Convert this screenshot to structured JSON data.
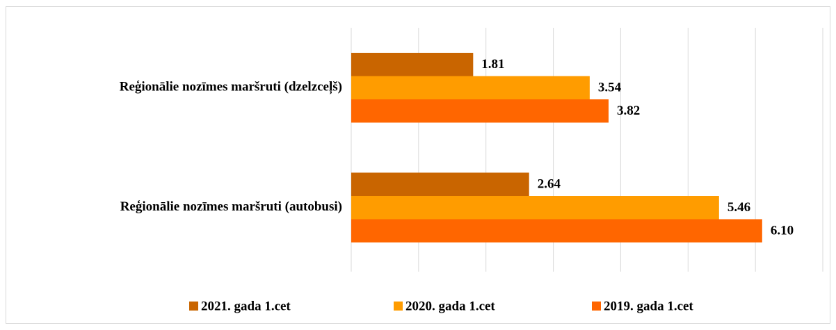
{
  "chart_data": {
    "type": "bar",
    "orientation": "horizontal",
    "categories": [
      "Reģionālie nozīmes maršruti (dzelzceļš)",
      "Reģionālie nozīmes maršruti (autobusi)"
    ],
    "series": [
      {
        "name": "2021. gada 1.cet",
        "color": "#c96500",
        "values": [
          1.81,
          2.64
        ],
        "value_labels": [
          "1.81",
          "2.64"
        ]
      },
      {
        "name": "2020. gada 1.cet",
        "color": "#ff9c00",
        "values": [
          3.54,
          5.46
        ],
        "value_labels": [
          "3.54",
          "5.46"
        ]
      },
      {
        "name": "2019. gada 1.cet",
        "color": "#ff6600",
        "values": [
          3.82,
          6.1
        ],
        "value_labels": [
          "3.82",
          "6.10"
        ]
      }
    ],
    "xlim": [
      0,
      7
    ],
    "xticks": [
      0,
      1,
      2,
      3,
      4,
      5,
      6,
      7
    ],
    "grid": true,
    "legend": "bottom"
  }
}
